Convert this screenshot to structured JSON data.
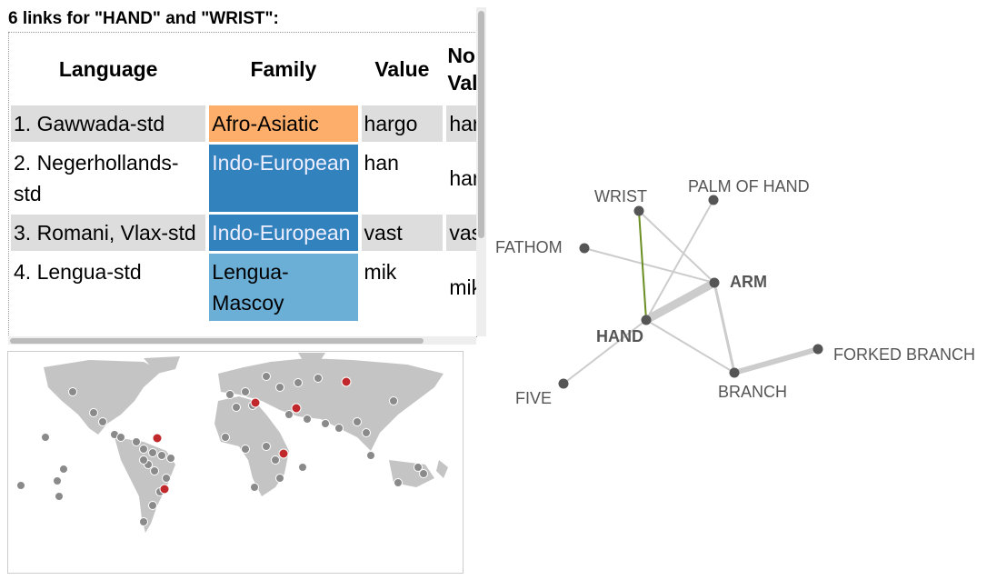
{
  "header": {
    "title": "6 links for \"HAND\" and \"WRIST\":"
  },
  "table": {
    "columns": [
      "Language",
      "Family",
      "Value",
      "Normalized Value"
    ],
    "rows": [
      [
        "1. Gawwada-std",
        "Afro-Asiatic",
        "hargo",
        "hargo"
      ],
      [
        "2. Negerhollands-std",
        "Indo-European",
        "han",
        "han"
      ],
      [
        "3. Romani, Vlax-std",
        "Indo-European",
        "vast",
        "vast"
      ],
      [
        "4. Lengua-std",
        "Lengua-Mascoy",
        "mik",
        "mik"
      ]
    ]
  },
  "graph": {
    "nodes": [
      "WRIST",
      "PALM OF HAND",
      "FATHOM",
      "ARM",
      "HAND",
      "FIVE",
      "BRANCH",
      "FORKED BRANCH"
    ]
  }
}
